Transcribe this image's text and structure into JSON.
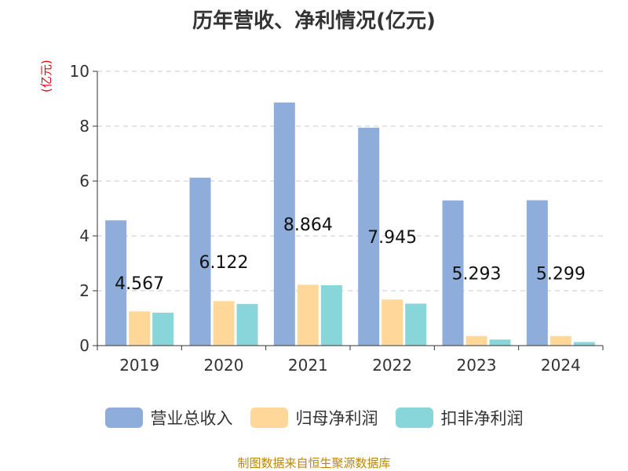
{
  "chart_data": {
    "type": "bar",
    "title": "历年营收、净利情况(亿元)",
    "ylabel": "(亿元)",
    "xlabel": "",
    "ylim": [
      0,
      10
    ],
    "yticks": [
      0,
      2,
      4,
      6,
      8,
      10
    ],
    "grid": true,
    "legend_position": "bottom",
    "categories": [
      "2019",
      "2020",
      "2021",
      "2022",
      "2023",
      "2024"
    ],
    "series": [
      {
        "name": "营业总收入",
        "color": "#8eaddb",
        "values": [
          4.567,
          6.122,
          8.864,
          7.945,
          5.293,
          5.299
        ],
        "data_labels": [
          "4.567",
          "6.122",
          "8.864",
          "7.945",
          "5.293",
          "5.299"
        ]
      },
      {
        "name": "归母净利润",
        "color": "#ffd899",
        "values": [
          1.25,
          1.62,
          2.22,
          1.68,
          0.35,
          0.35
        ]
      },
      {
        "name": "扣非净利润",
        "color": "#88d6d9",
        "values": [
          1.2,
          1.52,
          2.2,
          1.53,
          0.22,
          0.13
        ]
      }
    ],
    "source": "制图数据来自恒生聚源数据库"
  }
}
